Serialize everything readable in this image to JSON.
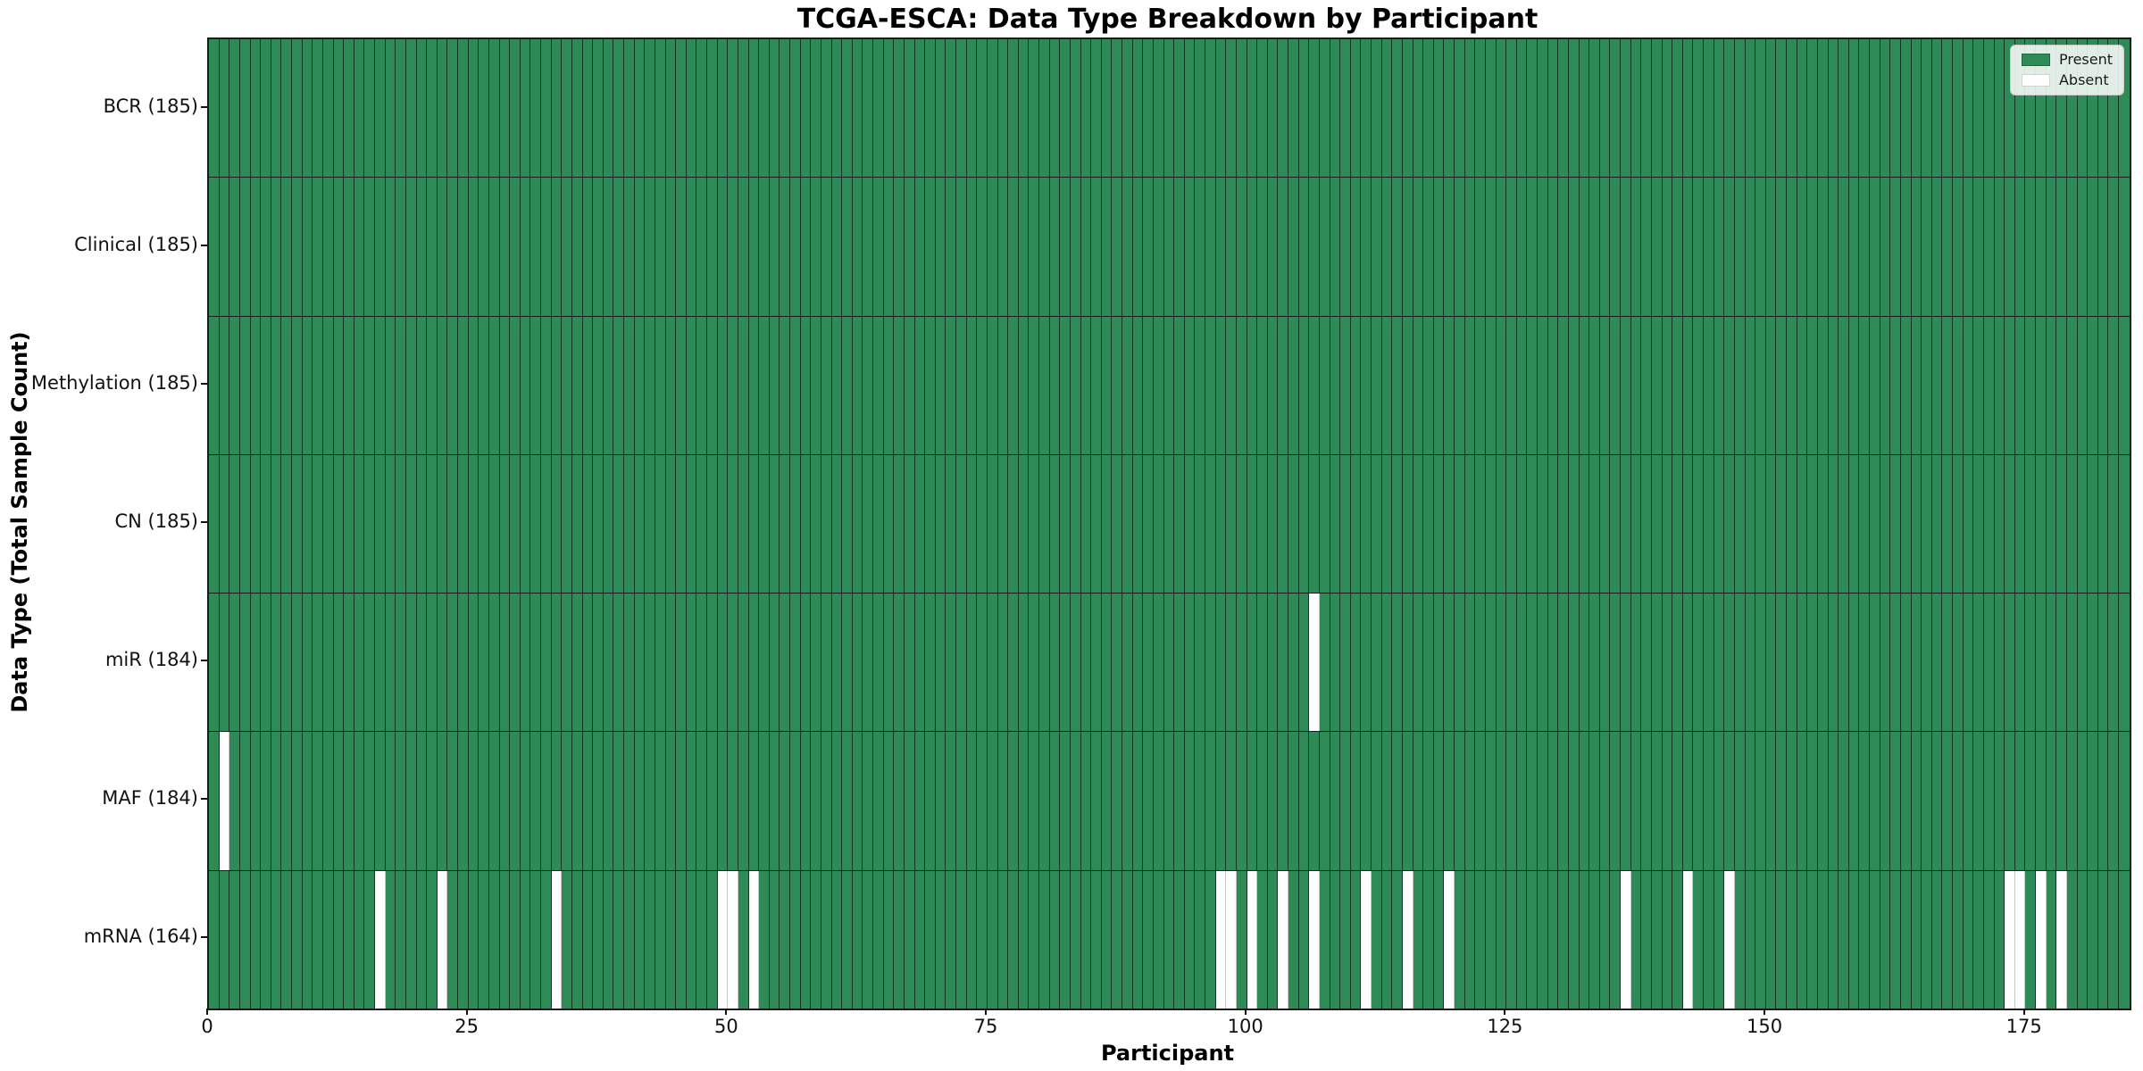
{
  "chart_data": {
    "type": "heatmap",
    "title": "TCGA-ESCA: Data Type Breakdown by Participant",
    "xlabel": "Participant",
    "ylabel": "Data Type (Total Sample Count)",
    "n_participants": 185,
    "x_ticks": [
      0,
      25,
      50,
      75,
      100,
      125,
      150,
      175
    ],
    "grid": "per-column cell borders, horizontal row separators",
    "legend_position": "upper right",
    "legend": [
      {
        "label": "Present",
        "color": "#2e8b57"
      },
      {
        "label": "Absent",
        "color": "#ffffff"
      }
    ],
    "colors": {
      "present": "#2e8b57",
      "absent": "#ffffff",
      "cell_border": "rgba(0,0,0,0.6)",
      "axis": "#1a1a1a"
    },
    "rows": [
      {
        "label": "BCR (185)",
        "data_type": "BCR",
        "total": 185,
        "absent_participants": []
      },
      {
        "label": "Clinical (185)",
        "data_type": "Clinical",
        "total": 185,
        "absent_participants": []
      },
      {
        "label": "Methylation (185)",
        "data_type": "Methylation",
        "total": 185,
        "absent_participants": []
      },
      {
        "label": "CN (185)",
        "data_type": "CN",
        "total": 185,
        "absent_participants": []
      },
      {
        "label": "miR (184)",
        "data_type": "miR",
        "total": 184,
        "absent_participants": [
          106
        ]
      },
      {
        "label": "MAF (184)",
        "data_type": "MAF",
        "total": 184,
        "absent_participants": [
          1
        ]
      },
      {
        "label": "mRNA (164)",
        "data_type": "mRNA",
        "total": 164,
        "absent_participants": [
          16,
          22,
          33,
          49,
          50,
          52,
          97,
          98,
          100,
          103,
          106,
          111,
          115,
          119,
          136,
          142,
          146,
          173,
          174,
          176,
          178
        ]
      }
    ]
  }
}
